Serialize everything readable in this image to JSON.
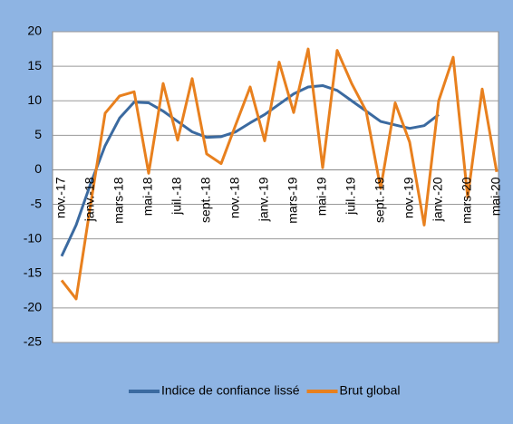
{
  "chart_data": {
    "type": "line",
    "categories": [
      "nov.-17",
      null,
      "janv.-18",
      null,
      "mars-18",
      null,
      "mai-18",
      null,
      "juil.-18",
      null,
      "sept.-18",
      null,
      "nov.-18",
      null,
      "janv.-19",
      null,
      "mars-19",
      null,
      "mai-19",
      null,
      "juil.-19",
      null,
      "sept.-19",
      null,
      "nov.-19",
      null,
      "janv.-20",
      null,
      "mars-20",
      null,
      "mai-20"
    ],
    "series": [
      {
        "name": "Indice de confiance lissé",
        "color": "#3b6aa0",
        "values": [
          -12.5,
          -8,
          -2,
          3.5,
          7.5,
          9.8,
          9.7,
          8.5,
          7,
          5.5,
          4.7,
          4.8,
          5.5,
          6.8,
          8,
          9.5,
          11,
          12,
          12.2,
          11.5,
          10,
          8.5,
          7,
          6.5,
          6,
          6.4,
          8,
          null,
          null,
          null,
          null
        ]
      },
      {
        "name": "Brut global",
        "color": "#e8801e",
        "values": [
          -16,
          -18.7,
          -5,
          8.2,
          10.7,
          11.3,
          -0.5,
          12.5,
          4.3,
          13.2,
          2.3,
          0.9,
          6.5,
          12,
          4.2,
          15.6,
          8.3,
          17.5,
          0.3,
          17.3,
          12.5,
          8.5,
          -2.7,
          9.7,
          4,
          -8,
          10,
          16.3,
          -4,
          11.7,
          -0.3
        ]
      }
    ],
    "ylim": [
      -25,
      20
    ],
    "yticks": [
      -25,
      -20,
      -15,
      -10,
      -5,
      0,
      5,
      10,
      15,
      20
    ],
    "grid": true,
    "legend": "bottom"
  }
}
